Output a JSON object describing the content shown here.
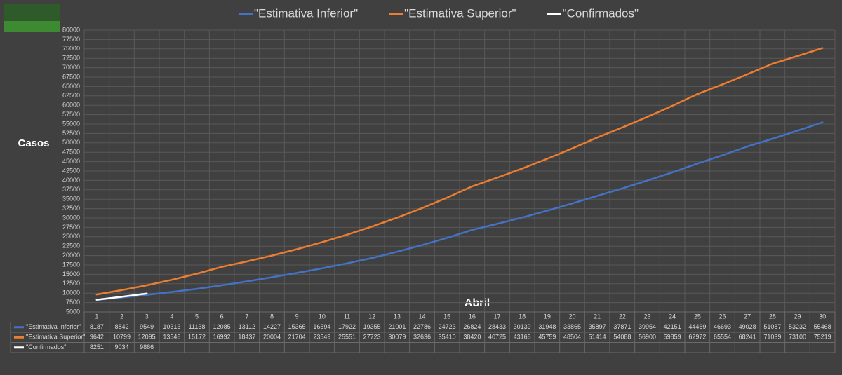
{
  "chart_data": {
    "type": "line",
    "x_label": "Abril",
    "y_label": "Casos",
    "categories": [
      "1",
      "2",
      "3",
      "4",
      "5",
      "6",
      "7",
      "8",
      "9",
      "10",
      "11",
      "12",
      "13",
      "14",
      "15",
      "16",
      "17",
      "18",
      "19",
      "20",
      "21",
      "22",
      "23",
      "24",
      "25",
      "26",
      "27",
      "28",
      "29",
      "30"
    ],
    "series": [
      {
        "name": "\"Estimativa Inferior\"",
        "color": "#4472c4",
        "values": [
          8187,
          8842,
          9549,
          10313,
          11138,
          12085,
          13112,
          14227,
          15365,
          16594,
          17922,
          19355,
          21001,
          22786,
          24723,
          26824,
          28433,
          30139,
          31948,
          33865,
          35897,
          37871,
          39954,
          42151,
          44469,
          46693,
          49028,
          51087,
          53232,
          55468
        ]
      },
      {
        "name": "\"Estimativa Superior\"",
        "color": "#ed7d31",
        "values": [
          9642,
          10799,
          12095,
          13546,
          15172,
          16992,
          18437,
          20004,
          21704,
          23549,
          25551,
          27723,
          30079,
          32636,
          35410,
          38420,
          40725,
          43168,
          45759,
          48504,
          51414,
          54088,
          56900,
          59859,
          62972,
          65554,
          68241,
          71039,
          73100,
          75219
        ]
      },
      {
        "name": "\"Confirmados\"",
        "color": "#ffffff",
        "values": [
          8251,
          9034,
          9886,
          null,
          null,
          null,
          null,
          null,
          null,
          null,
          null,
          null,
          null,
          null,
          null,
          null,
          null,
          null,
          null,
          null,
          null,
          null,
          null,
          null,
          null,
          null,
          null,
          null,
          null,
          null
        ]
      }
    ],
    "ylim": [
      5000,
      80000
    ],
    "yticks": [
      5000,
      7500,
      10000,
      12500,
      15000,
      17500,
      20000,
      22500,
      25000,
      27500,
      30000,
      32500,
      35000,
      37500,
      40000,
      42500,
      45000,
      47500,
      50000,
      52500,
      55000,
      57500,
      60000,
      62500,
      65000,
      67500,
      70000,
      72500,
      75000,
      77500,
      80000
    ],
    "grid": true,
    "legend": "top",
    "data_table": true
  }
}
